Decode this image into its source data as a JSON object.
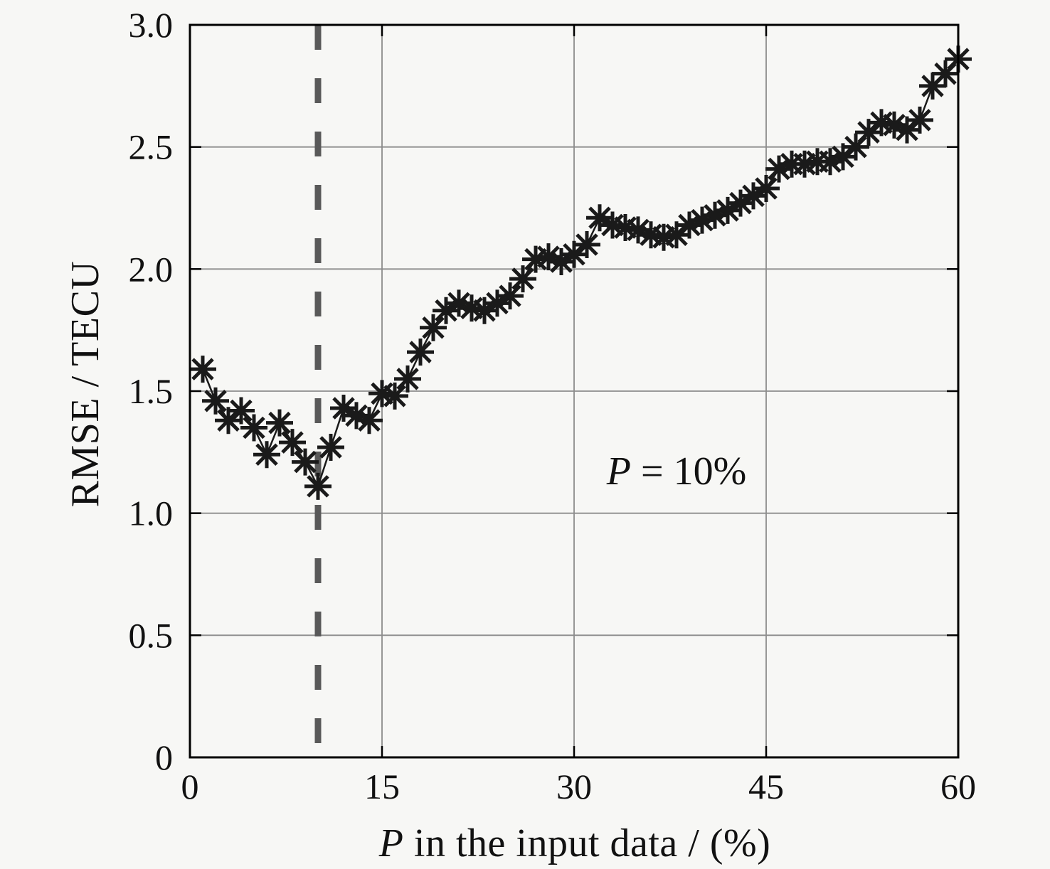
{
  "labels": {
    "ylabel": "RMSE / TECU",
    "xlabel_full": "P in the input data / (%)",
    "xlabel_var": "P",
    "xlabel_rest": " in the input data / (%)",
    "annotation_full": "P = 10%",
    "annotation_var": "P",
    "annotation_rest": " = 10%"
  },
  "chart_data": {
    "type": "line",
    "title": "",
    "xlabel": "P in the input data / (%)",
    "ylabel": "RMSE / TECU",
    "xlim": [
      0,
      60
    ],
    "ylim": [
      0,
      3
    ],
    "xticks": [
      0,
      15,
      30,
      45,
      60
    ],
    "xtick_labels": [
      "0",
      "15",
      "30",
      "45",
      "60"
    ],
    "yticks": [
      0,
      0.5,
      1,
      1.5,
      2,
      2.5,
      3
    ],
    "ytick_labels": [
      "0",
      "0.5",
      "1.0",
      "1.5",
      "2.0",
      "2.5",
      "3.0"
    ],
    "grid": true,
    "legend_position": "none",
    "marker": "asterisk",
    "line_color": "#1a1a1a",
    "grid_color": "#8c8c8c",
    "axis_color": "#000000",
    "background": "#f7f7f5",
    "vline": {
      "x": 10,
      "style": "dashed",
      "color": "#595959"
    },
    "annotation": {
      "text": "P = 10%",
      "x": 38,
      "y": 1.17
    },
    "x": [
      1,
      2,
      3,
      4,
      5,
      6,
      7,
      8,
      9,
      10,
      11,
      12,
      13,
      14,
      15,
      16,
      17,
      18,
      19,
      20,
      21,
      22,
      23,
      24,
      25,
      26,
      27,
      28,
      29,
      30,
      31,
      32,
      33,
      34,
      35,
      36,
      37,
      38,
      39,
      40,
      41,
      42,
      43,
      44,
      45,
      46,
      47,
      48,
      49,
      50,
      51,
      52,
      53,
      54,
      55,
      56,
      57,
      58,
      59,
      60
    ],
    "y": [
      1.59,
      1.46,
      1.38,
      1.42,
      1.35,
      1.24,
      1.37,
      1.29,
      1.21,
      1.11,
      1.27,
      1.43,
      1.4,
      1.38,
      1.49,
      1.48,
      1.55,
      1.66,
      1.76,
      1.83,
      1.86,
      1.84,
      1.83,
      1.86,
      1.89,
      1.96,
      2.04,
      2.05,
      2.03,
      2.06,
      2.1,
      2.21,
      2.18,
      2.17,
      2.16,
      2.14,
      2.13,
      2.14,
      2.18,
      2.2,
      2.22,
      2.24,
      2.27,
      2.3,
      2.33,
      2.41,
      2.43,
      2.43,
      2.44,
      2.44,
      2.46,
      2.5,
      2.56,
      2.6,
      2.59,
      2.57,
      2.61,
      2.75,
      2.8,
      2.86
    ]
  }
}
